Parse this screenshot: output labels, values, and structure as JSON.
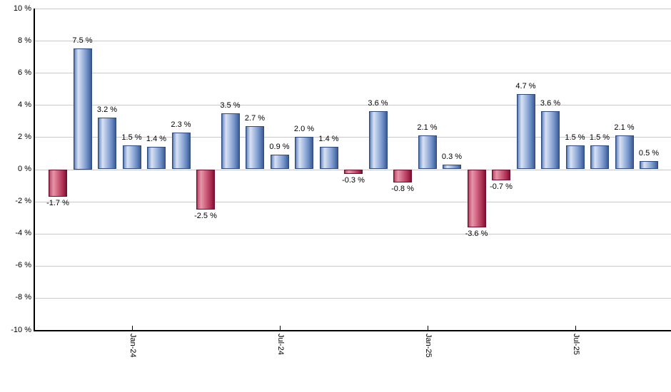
{
  "chart_data": {
    "type": "bar",
    "title": "",
    "xlabel": "",
    "ylabel": "",
    "unit": "%",
    "ylim": [
      -10,
      10
    ],
    "y_step": 2,
    "grid": true,
    "legend": null,
    "y_tick_labels": [
      "10 %",
      "8 %",
      "6 %",
      "4 %",
      "2 %",
      "0 %",
      "-2 %",
      "-4 %",
      "-6 %",
      "-8 %",
      "-10 %"
    ],
    "x_tick_labels": [
      "Jan-24",
      "Jul-24",
      "Jan-25",
      "Jul-25"
    ],
    "x_tick_bar_indices": [
      3,
      9,
      15,
      21
    ],
    "bars": [
      {
        "value": -1.7,
        "label": "-1.7 %"
      },
      {
        "value": 7.5,
        "label": "7.5 %"
      },
      {
        "value": 3.2,
        "label": "3.2 %"
      },
      {
        "value": 1.5,
        "label": "1.5 %"
      },
      {
        "value": 1.4,
        "label": "1.4 %"
      },
      {
        "value": 2.3,
        "label": "2.3 %"
      },
      {
        "value": -2.5,
        "label": "-2.5 %"
      },
      {
        "value": 3.5,
        "label": "3.5 %"
      },
      {
        "value": 2.7,
        "label": "2.7 %"
      },
      {
        "value": 0.9,
        "label": "0.9 %"
      },
      {
        "value": 2.0,
        "label": "2.0 %"
      },
      {
        "value": 1.4,
        "label": "1.4 %"
      },
      {
        "value": -0.3,
        "label": "-0.3 %"
      },
      {
        "value": 3.6,
        "label": "3.6 %"
      },
      {
        "value": -0.8,
        "label": "-0.8 %"
      },
      {
        "value": 2.1,
        "label": "2.1 %"
      },
      {
        "value": 0.3,
        "label": "0.3 %"
      },
      {
        "value": -3.6,
        "label": "-3.6 %"
      },
      {
        "value": -0.7,
        "label": "-0.7 %"
      },
      {
        "value": 4.7,
        "label": "4.7 %"
      },
      {
        "value": 3.6,
        "label": "3.6 %"
      },
      {
        "value": 1.5,
        "label": "1.5 %"
      },
      {
        "value": 1.5,
        "label": "1.5 %"
      },
      {
        "value": 2.1,
        "label": "2.1 %"
      },
      {
        "value": 0.5,
        "label": "0.5 %"
      }
    ],
    "colors": {
      "positive_bar_mid": "#8aa6d5",
      "positive_bar_light": "#d9e2f3",
      "positive_bar_dark": "#3b5a94",
      "positive_bar_border": "#2d4b7e",
      "negative_bar_mid": "#c24f6d",
      "negative_bar_light": "#e595a9",
      "negative_bar_dark": "#8c1838",
      "negative_bar_border": "#6f0e2d",
      "gridline": "#c9c9c9",
      "axis_line": "#000000",
      "label_text": "#000000",
      "background": "#ffffff"
    }
  }
}
